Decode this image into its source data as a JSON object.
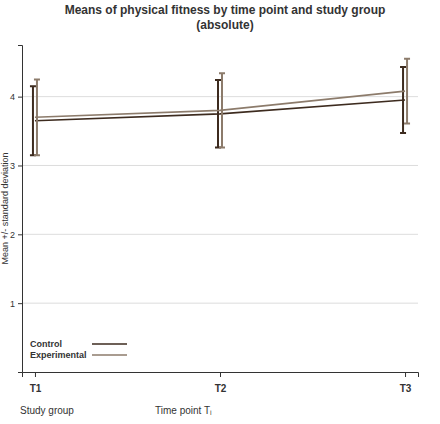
{
  "chart_data": {
    "type": "line",
    "title": "Means of physical fitness by time point and study group\n(absolute)",
    "y_label": "Mean +/- standard deviation",
    "x_label": "Time point Tᵢ",
    "annotations": [
      "Study group"
    ],
    "categories": [
      "T1",
      "T2",
      "T3"
    ],
    "series": [
      {
        "name": "Control",
        "color": "#3d2b1f",
        "values": [
          3.65,
          3.75,
          3.95
        ],
        "errors": [
          0.5,
          0.49,
          0.48
        ]
      },
      {
        "name": "Experimental",
        "color": "#8c7b6b",
        "values": [
          3.7,
          3.8,
          4.08
        ],
        "errors": [
          0.55,
          0.54,
          0.47
        ]
      }
    ],
    "ylim": [
      0,
      4.75
    ],
    "yticks": [
      1,
      2,
      3,
      4
    ],
    "grid": true,
    "legend": "lower left"
  }
}
